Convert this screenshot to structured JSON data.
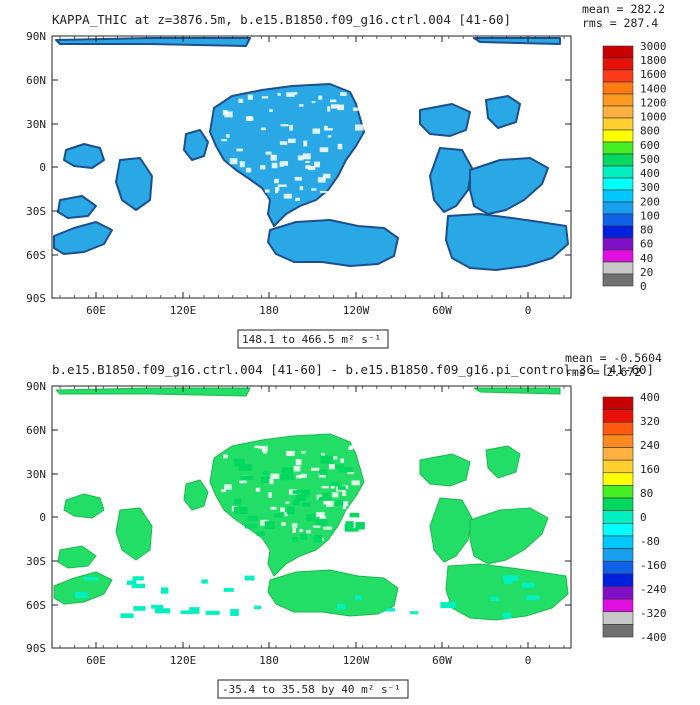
{
  "panels": [
    {
      "title": "KAPPA_THIC at z=3876.5m, b.e15.B1850.f09_g16.ctrl.004 [41-60]",
      "mean_text": "mean = 282.2",
      "rms_text": "rms = 287.4",
      "range_text": "148.1 to 466.5 m² s⁻¹",
      "land_color": "#2aa8e6",
      "coast_color": "#1d4f8f",
      "colorbar": {
        "labels": [
          "3000",
          "1800",
          "1600",
          "1400",
          "1200",
          "1000",
          "800",
          "600",
          "500",
          "400",
          "300",
          "200",
          "100",
          "80",
          "60",
          "40",
          "20",
          "0"
        ],
        "colors": [
          "#c80000",
          "#e8110a",
          "#ff3a1a",
          "#ff7a10",
          "#ff9a20",
          "#ffb040",
          "#ffd030",
          "#ffff00",
          "#44ee22",
          "#00d860",
          "#00f0c0",
          "#00ffff",
          "#00c8ff",
          "#18a0f0",
          "#1060e8",
          "#0020e0",
          "#8010c8",
          "#e010e0",
          "#c8c8c8",
          "#707070"
        ]
      }
    },
    {
      "title": "b.e15.B1850.f09_g16.ctrl.004 [41-60] - b.e15.B1850.f09_g16.pi_control.36 [41-60]",
      "mean_text": "mean = -0.5604",
      "rms_text": "rms = 2.672",
      "range_text": "-35.4 to 35.58 by 40 m² s⁻¹",
      "land_color": "#22dd66",
      "coast_color": "#1fb84f",
      "colorbar": {
        "labels": [
          "400",
          "320",
          "240",
          "160",
          "80",
          "0",
          "-80",
          "-160",
          "-240",
          "-320",
          "-400"
        ],
        "colors": [
          "#c80000",
          "#e8110a",
          "#ff5a10",
          "#ff8a20",
          "#ffb040",
          "#ffd030",
          "#ffff00",
          "#44ee22",
          "#00d860",
          "#00f0c0",
          "#00ffff",
          "#00c8ff",
          "#18a0f0",
          "#1060e8",
          "#0020e0",
          "#8010c8",
          "#e010e0",
          "#c8c8c8",
          "#707070"
        ]
      }
    }
  ],
  "axes": {
    "lat_labels": [
      "90N",
      "60N",
      "30N",
      "0",
      "30S",
      "60S",
      "90S"
    ],
    "lon_labels": [
      "60E",
      "120E",
      "180",
      "120W",
      "60W",
      "0"
    ]
  }
}
